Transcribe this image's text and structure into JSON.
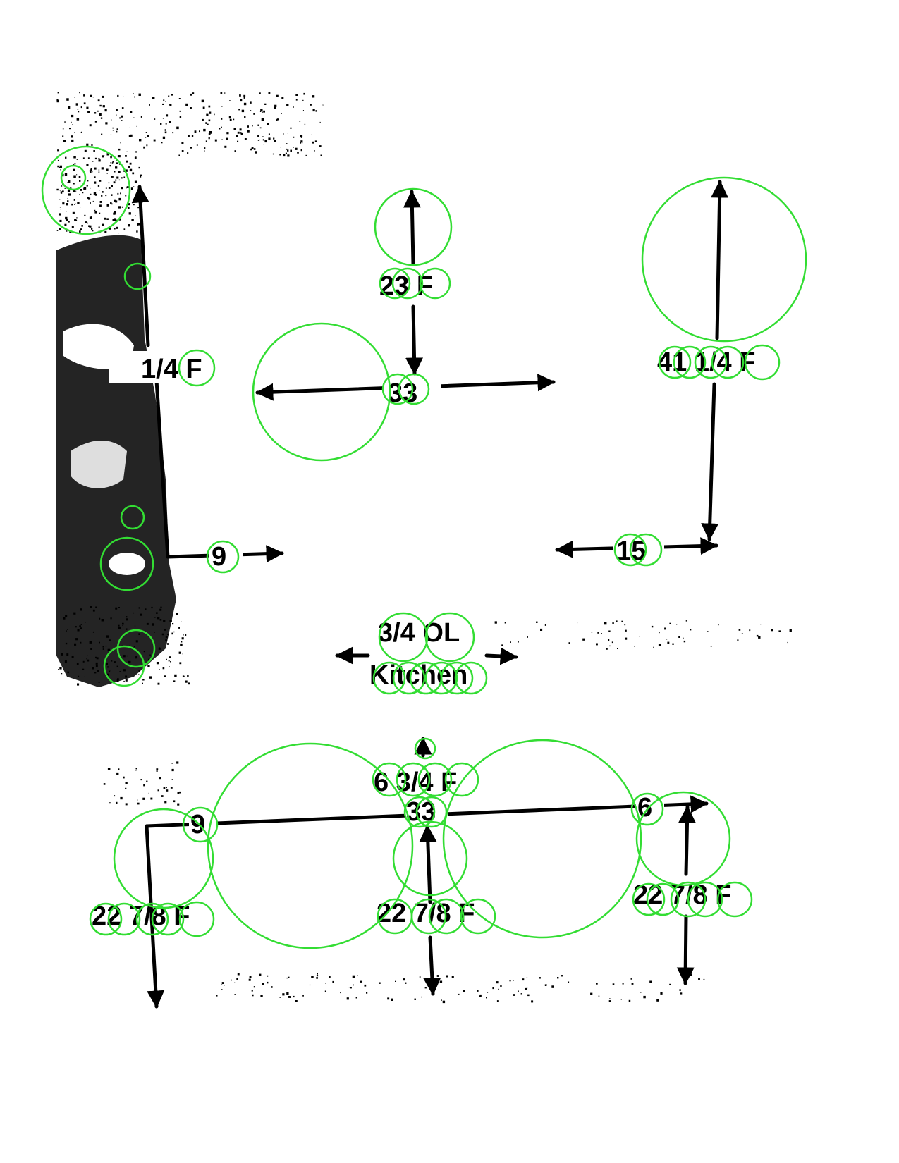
{
  "colors": {
    "ink": "#000000",
    "detection_ring": "#33dd33",
    "background": "#ffffff",
    "photo_shadow": "#111111"
  },
  "labels": {
    "left_height": "1/4 F",
    "top_center_height": "23 F",
    "center_span": "33",
    "right_height": "41 1/4 F",
    "left_span": "9",
    "right_span": "15",
    "room_area": "3/4 OL",
    "room_name": "Kitchen",
    "lower_height": "6 3/4 F",
    "lower_span": "33",
    "lower_left_span": "9",
    "lower_right_span": "6",
    "lower_left_depth": "22 7/8 F",
    "lower_center_depth": "22 7/8 F",
    "lower_right_depth": "22 7/8 F"
  }
}
